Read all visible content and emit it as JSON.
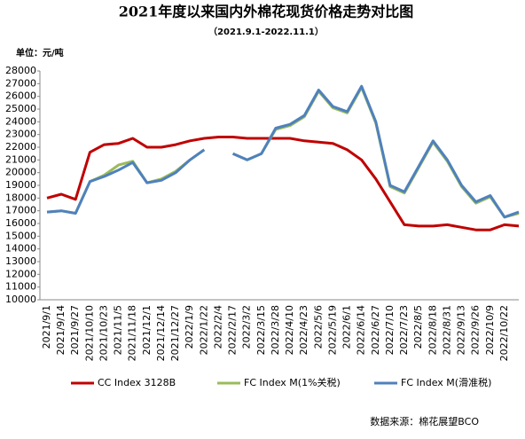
{
  "chart_data": {
    "type": "line",
    "title": "2021年度以来国内外棉花现货价格走势对比图",
    "subtitle": "（2021.9.1-2022.11.1）",
    "y_label": "单位：元/吨",
    "source": "数据来源：棉花展望BCO",
    "categories": [
      "2021/9/1",
      "2021/9/14",
      "2021/9/27",
      "2021/10/10",
      "2021/10/23",
      "2021/11/5",
      "2021/11/18",
      "2021/12/1",
      "2021/12/14",
      "2021/12/27",
      "2022/1/9",
      "2022/1/22",
      "2022/2/4",
      "2022/2/17",
      "2022/3/2",
      "2022/3/15",
      "2022/3/28",
      "2022/4/10",
      "2022/4/23",
      "2022/5/6",
      "2022/5/19",
      "2022/6/1",
      "2022/6/14",
      "2022/6/27",
      "2022/7/10",
      "2022/7/23",
      "2022/8/5",
      "2022/8/18",
      "2022/8/31",
      "2022/9/13",
      "2022/9/26",
      "2022/10/9",
      "2022/10/22",
      null
    ],
    "series": [
      {
        "name": "CC Index 3128B",
        "color": "#c00000",
        "values": [
          18000,
          18300,
          17900,
          21600,
          22200,
          22300,
          22700,
          22000,
          22000,
          22200,
          22500,
          22700,
          22800,
          22800,
          22700,
          22700,
          22700,
          22700,
          22500,
          22400,
          22300,
          21800,
          21000,
          19500,
          17700,
          15900,
          15800,
          15800,
          15900,
          15700,
          15500,
          15500,
          15900,
          15800
        ]
      },
      {
        "name": "FC Index M(1%关税)",
        "color": "#9bbb59",
        "values": [
          16900,
          17000,
          16800,
          19300,
          19800,
          20600,
          20900,
          19200,
          19500,
          20100,
          21000,
          21800,
          null,
          21500,
          21000,
          21500,
          23400,
          23700,
          24400,
          26400,
          25100,
          24700,
          26700,
          23900,
          18900,
          18400,
          20400,
          22400,
          20900,
          18900,
          17600,
          18100,
          16500,
          16800
        ]
      },
      {
        "name": "FC Index M(滑准税)",
        "color": "#4f81bd",
        "values": [
          16900,
          17000,
          16800,
          19300,
          19700,
          20200,
          20800,
          19200,
          19400,
          20000,
          21000,
          21800,
          null,
          21500,
          21000,
          21500,
          23500,
          23800,
          24500,
          26500,
          25200,
          24800,
          26800,
          24000,
          19000,
          18500,
          20500,
          22500,
          21000,
          19000,
          17700,
          18200,
          16500,
          16900
        ]
      }
    ],
    "ylim": [
      10000,
      28000
    ],
    "yticks": [
      10000,
      11000,
      12000,
      13000,
      14000,
      15000,
      16000,
      17000,
      18000,
      19000,
      20000,
      21000,
      22000,
      23000,
      24000,
      25000,
      26000,
      27000,
      28000
    ]
  }
}
